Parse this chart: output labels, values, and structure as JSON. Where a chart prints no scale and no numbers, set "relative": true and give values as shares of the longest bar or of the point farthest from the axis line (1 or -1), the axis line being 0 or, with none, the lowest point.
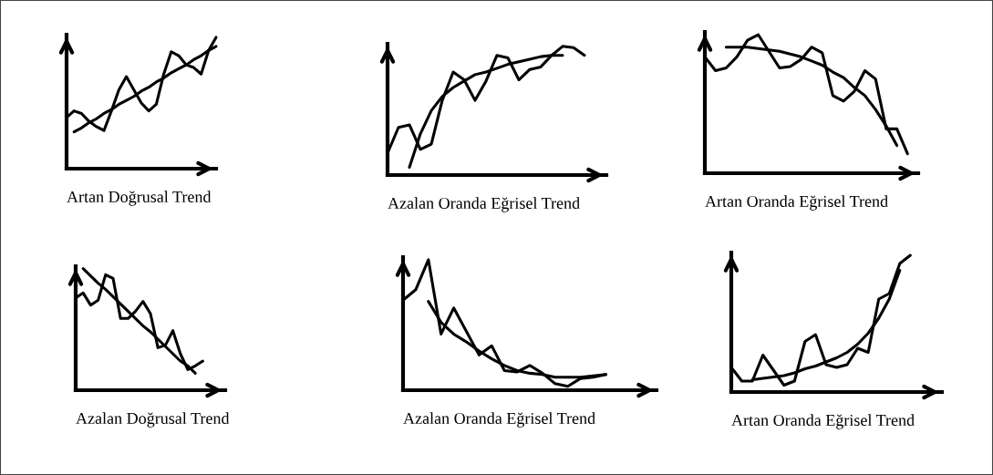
{
  "chart_data": [
    {
      "type": "line",
      "relative": true,
      "xlabel": "Artan Doğrusal Trend",
      "categories": [
        null,
        null,
        null,
        null,
        null,
        null,
        null,
        null,
        null,
        null,
        null,
        null,
        null,
        null,
        null,
        null,
        null,
        null,
        null,
        null,
        null
      ],
      "series": [
        {
          "color": "#000000",
          "values": [
            0.39,
            0.44,
            0.42,
            0.36,
            0.32,
            0.29,
            0.44,
            0.6,
            0.7,
            0.6,
            0.5,
            0.44,
            0.49,
            0.72,
            0.89,
            0.86,
            0.79,
            0.77,
            0.72,
            0.9,
            1
          ]
        },
        {
          "color": "#000000",
          "values": [
            null,
            0.28,
            0.31,
            0.35,
            0.38,
            0.42,
            0.45,
            0.49,
            0.52,
            0.55,
            0.59,
            0.62,
            0.66,
            0.69,
            0.73,
            0.76,
            0.79,
            0.83,
            0.86,
            0.9,
            0.93
          ]
        }
      ]
    },
    {
      "type": "line",
      "relative": true,
      "xlabel": "Azalan Oranda Eğrisel Trend",
      "categories": [
        null,
        null,
        null,
        null,
        null,
        null,
        null,
        null,
        null,
        null,
        null,
        null,
        null,
        null,
        null,
        null,
        null,
        null,
        null,
        null,
        null
      ],
      "series": [
        {
          "color": "#000000",
          "values": [
            0.17,
            0.37,
            0.39,
            0.2,
            0.24,
            0.58,
            0.8,
            0.74,
            0.58,
            0.73,
            0.93,
            0.91,
            0.74,
            0.82,
            0.84,
            0.93,
            1,
            0.99,
            0.93,
            null,
            null
          ]
        },
        {
          "color": "#000000",
          "values": [
            null,
            null,
            0.06,
            0.32,
            0.5,
            0.61,
            0.68,
            0.73,
            0.78,
            0.8,
            0.83,
            0.86,
            0.88,
            0.9,
            0.92,
            0.93,
            0.93,
            null,
            null,
            null,
            null
          ]
        }
      ]
    },
    {
      "type": "line",
      "relative": true,
      "xlabel": "Artan Oranda Eğrisel Trend",
      "categories": [
        null,
        null,
        null,
        null,
        null,
        null,
        null,
        null,
        null,
        null,
        null,
        null,
        null,
        null,
        null,
        null,
        null,
        null,
        null,
        null,
        null
      ],
      "series": [
        {
          "color": "#000000",
          "values": [
            0.84,
            0.74,
            0.76,
            0.84,
            0.96,
            1,
            0.88,
            0.76,
            0.77,
            0.82,
            0.91,
            0.87,
            0.56,
            0.52,
            0.59,
            0.74,
            0.68,
            0.32,
            0.32,
            0.14,
            null
          ]
        },
        {
          "color": "#000000",
          "values": [
            null,
            null,
            0.91,
            0.91,
            0.91,
            0.9,
            0.89,
            0.88,
            0.86,
            0.84,
            0.81,
            0.78,
            0.73,
            0.69,
            0.62,
            0.56,
            0.46,
            0.34,
            0.2,
            null,
            null
          ]
        }
      ]
    },
    {
      "type": "line",
      "relative": true,
      "xlabel": "Azalan Doğrusal Trend",
      "categories": [
        null,
        null,
        null,
        null,
        null,
        null,
        null,
        null,
        null,
        null,
        null,
        null,
        null,
        null,
        null,
        null,
        null,
        null,
        null,
        null,
        null
      ],
      "series": [
        {
          "color": "#000000",
          "values": [
            0.76,
            0.8,
            0.7,
            0.74,
            0.95,
            0.92,
            0.59,
            0.59,
            0.65,
            0.73,
            0.63,
            0.35,
            0.37,
            0.49,
            0.3,
            0.17,
            0.2,
            0.24,
            null,
            null,
            null
          ]
        },
        {
          "color": "#000000",
          "values": [
            null,
            1,
            0.94,
            0.88,
            0.83,
            0.77,
            0.71,
            0.65,
            0.59,
            0.53,
            0.48,
            0.42,
            0.36,
            0.3,
            0.24,
            0.2,
            0.14,
            null,
            null,
            null,
            null
          ]
        }
      ]
    },
    {
      "type": "line",
      "relative": true,
      "xlabel": "Azalan Oranda Eğrisel Trend",
      "categories": [
        null,
        null,
        null,
        null,
        null,
        null,
        null,
        null,
        null,
        null,
        null,
        null,
        null,
        null,
        null,
        null,
        null,
        null,
        null,
        null,
        null
      ],
      "series": [
        {
          "color": "#000000",
          "values": [
            0.69,
            0.77,
            1,
            0.43,
            0.63,
            0.45,
            0.27,
            0.34,
            0.15,
            0.14,
            0.19,
            0.13,
            0.05,
            0.03,
            0.09,
            0.1,
            0.12,
            null,
            null,
            null,
            null
          ]
        },
        {
          "color": "#000000",
          "values": [
            null,
            null,
            0.68,
            0.52,
            0.43,
            0.37,
            0.3,
            0.24,
            0.19,
            0.15,
            0.13,
            0.12,
            0.1,
            0.1,
            0.1,
            0.11,
            0.12,
            null,
            null,
            null,
            null
          ]
        }
      ]
    },
    {
      "type": "line",
      "relative": true,
      "xlabel": "Artan Oranda Eğrisel Trend",
      "categories": [
        null,
        null,
        null,
        null,
        null,
        null,
        null,
        null,
        null,
        null,
        null,
        null,
        null,
        null,
        null,
        null,
        null,
        null,
        null,
        null,
        null
      ],
      "series": [
        {
          "color": "#000000",
          "values": [
            0.18,
            0.08,
            0.08,
            0.27,
            0.16,
            0.05,
            0.08,
            0.37,
            0.42,
            0.2,
            0.18,
            0.2,
            0.32,
            0.29,
            0.68,
            0.72,
            0.94,
            1,
            null,
            null,
            null
          ]
        },
        {
          "color": "#000000",
          "values": [
            null,
            null,
            0.09,
            0.1,
            0.11,
            0.12,
            0.14,
            0.17,
            0.19,
            0.22,
            0.25,
            0.29,
            0.35,
            0.43,
            0.54,
            0.68,
            0.89,
            null,
            null,
            null,
            null
          ]
        }
      ]
    }
  ]
}
